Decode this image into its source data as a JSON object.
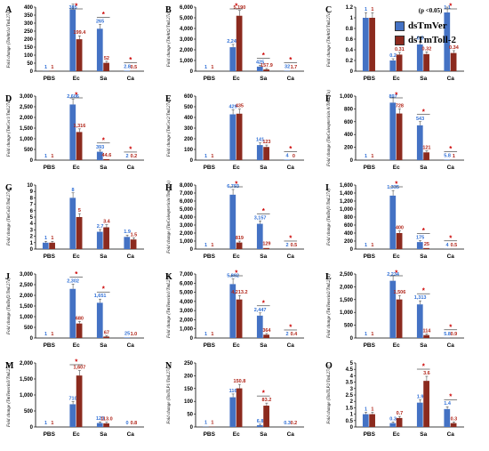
{
  "legend": [
    {
      "name": "dsTmVer",
      "color": "#4472C4"
    },
    {
      "name": "dsTmToll-2",
      "color": "#8B2A1E"
    }
  ],
  "colors": {
    "series1": "#4472C4",
    "series2": "#8B2A1E",
    "label1": "#2F6FD6",
    "label2": "#B02418",
    "star": "#CC0000"
  },
  "chart_data": [
    {
      "type": "bar",
      "panel": "A",
      "ylabel": "Fold change (TmAtt1a/TmL27a)",
      "ylim": [
        0,
        400
      ],
      "yticks": [
        0,
        50,
        100,
        150,
        200,
        250,
        300,
        350,
        400
      ],
      "categories": [
        "PBS",
        "Ec",
        "Sa",
        "Ca"
      ],
      "series": [
        {
          "name": "dsTmVer",
          "values": [
            1,
            385,
            265,
            2.8
          ]
        },
        {
          "name": "dsTmToll-2",
          "values": [
            1,
            199.4,
            52,
            0.5
          ]
        }
      ],
      "value_labels": [
        [
          "1",
          "385",
          "265",
          "2.8"
        ],
        [
          "1",
          "199.4",
          "52",
          "0.5"
        ]
      ],
      "significant": [
        false,
        true,
        true,
        true
      ]
    },
    {
      "type": "bar",
      "panel": "B",
      "ylabel": "Fold change (TmAtt2/TmL27a)",
      "ylim": [
        0,
        6000
      ],
      "yticks": [
        0,
        1000,
        2000,
        3000,
        4000,
        5000,
        6000
      ],
      "ytick_labels": [
        "0",
        "1,000",
        "2,000",
        "3,000",
        "4,000",
        "5,000",
        "6,000"
      ],
      "categories": [
        "PBS",
        "Ec",
        "Sa",
        "Ca"
      ],
      "series": [
        {
          "name": "dsTmVer",
          "values": [
            1,
            2243,
            425,
            32
          ]
        },
        {
          "name": "dsTmToll-2",
          "values": [
            1,
            5190,
            157.9,
            1.7
          ]
        }
      ],
      "value_labels": [
        [
          "1",
          "2,243",
          "425",
          "32"
        ],
        [
          "1",
          "5,190",
          "157.9",
          "1.7"
        ]
      ],
      "significant": [
        false,
        true,
        true,
        true
      ]
    },
    {
      "type": "bar",
      "panel": "C",
      "ylabel": "Fold change (TmAtt3/TmL27a)",
      "ylim": [
        0,
        1.2
      ],
      "yticks": [
        0,
        0.2,
        0.4,
        0.6,
        0.8,
        1,
        1.2
      ],
      "ytick_labels": [
        "0",
        "0.2",
        "0.4",
        "0.6",
        "0.8",
        "1",
        "1.2"
      ],
      "categories": [
        "PBS",
        "Ec",
        "Sa",
        "Ca"
      ],
      "series": [
        {
          "name": "dsTmVer",
          "values": [
            1,
            0.2,
            0.5,
            1.1
          ]
        },
        {
          "name": "dsTmToll-2",
          "values": [
            1,
            0.31,
            0.32,
            0.34
          ]
        }
      ],
      "value_labels": [
        [
          "1",
          "0.2",
          "0.5",
          "1.1"
        ],
        [
          "1",
          "0.31",
          "0.32",
          "0.34"
        ]
      ],
      "significant": [
        false,
        false,
        false,
        true
      ],
      "annotation": "(p <0.05)"
    },
    {
      "type": "bar",
      "panel": "D",
      "ylabel": "Fold change (TmCec1/TmL27a)",
      "ylim": [
        0,
        3000
      ],
      "yticks": [
        0,
        500,
        1000,
        1500,
        2000,
        2500,
        3000
      ],
      "ytick_labels": [
        "0",
        "500",
        "1,000",
        "1,500",
        "2,000",
        "2,500",
        "3,000"
      ],
      "categories": [
        "PBS",
        "Ec",
        "Sa",
        "Ca"
      ],
      "series": [
        {
          "name": "dsTmVer",
          "values": [
            1,
            2606,
            393,
            2
          ]
        },
        {
          "name": "dsTmToll-2",
          "values": [
            1,
            1316,
            44.6,
            0.2
          ]
        }
      ],
      "value_labels": [
        [
          "1",
          "2,606",
          "393",
          "2"
        ],
        [
          "1",
          "1,316",
          "44.6",
          "0.2"
        ]
      ],
      "significant": [
        false,
        true,
        true,
        true
      ]
    },
    {
      "type": "bar",
      "panel": "E",
      "ylabel": "Fold change (TmCec2/TmL27a)",
      "ylim": [
        0,
        600
      ],
      "yticks": [
        0,
        100,
        200,
        300,
        400,
        500,
        600
      ],
      "categories": [
        "PBS",
        "Ec",
        "Sa",
        "Ca"
      ],
      "series": [
        {
          "name": "dsTmVer",
          "values": [
            1,
            429,
            141,
            4
          ]
        },
        {
          "name": "dsTmToll-2",
          "values": [
            1,
            435,
            123,
            0
          ]
        }
      ],
      "value_labels": [
        [
          "1",
          "429",
          "141",
          "4"
        ],
        [
          "1",
          "435",
          "123",
          "0"
        ]
      ],
      "significant": [
        false,
        false,
        false,
        true
      ]
    },
    {
      "type": "bar",
      "panel": "F",
      "ylabel": "Fold change (TmColeoptericin A/TmL27a)",
      "ylim": [
        0,
        1000
      ],
      "yticks": [
        0,
        200,
        400,
        600,
        800,
        1000
      ],
      "ytick_labels": [
        "0",
        "200",
        "400",
        "600",
        "800",
        "1,000"
      ],
      "categories": [
        "PBS",
        "Ec",
        "Sa",
        "Ca"
      ],
      "series": [
        {
          "name": "dsTmVer",
          "values": [
            1,
            897,
            543,
            5.8
          ]
        },
        {
          "name": "dsTmToll-2",
          "values": [
            1,
            728,
            121,
            1
          ]
        }
      ],
      "value_labels": [
        [
          "1",
          "897",
          "543",
          "5.8"
        ],
        [
          "1",
          "728",
          "121",
          "1"
        ]
      ],
      "significant": [
        false,
        true,
        true,
        true
      ]
    },
    {
      "type": "bar",
      "panel": "G",
      "ylabel": "Fold change (TmCol2/TmL27a)",
      "ylim": [
        0,
        10
      ],
      "yticks": [
        0,
        1,
        2,
        3,
        4,
        5,
        6,
        7,
        8,
        9,
        10
      ],
      "categories": [
        "PBS",
        "Ec",
        "Sa",
        "Ca"
      ],
      "series": [
        {
          "name": "dsTmVer",
          "values": [
            1,
            8,
            2.7,
            1.9
          ]
        },
        {
          "name": "dsTmToll-2",
          "values": [
            1,
            5,
            3.4,
            1.5
          ]
        }
      ],
      "value_labels": [
        [
          "1",
          "8",
          "2.7",
          "1.9"
        ],
        [
          "1",
          "5",
          "3.4",
          "1.5"
        ]
      ],
      "significant": [
        false,
        false,
        false,
        false
      ]
    },
    {
      "type": "bar",
      "panel": "H",
      "ylabel": "Fold change (TmColeoptericin/TmL27a)",
      "ylim": [
        0,
        8000
      ],
      "yticks": [
        0,
        1000,
        2000,
        3000,
        4000,
        5000,
        6000,
        7000,
        8000
      ],
      "ytick_labels": [
        "0",
        "1,000",
        "2,000",
        "3,000",
        "4,000",
        "5,000",
        "6,000",
        "7,000",
        "8,000"
      ],
      "categories": [
        "PBS",
        "Ec",
        "Sa",
        "Ca"
      ],
      "series": [
        {
          "name": "dsTmVer",
          "values": [
            1,
            6793,
            3157,
            2
          ]
        },
        {
          "name": "dsTmToll-2",
          "values": [
            1,
            819,
            129,
            0.5
          ]
        }
      ],
      "value_labels": [
        [
          "1",
          "6,793",
          "3,157",
          "2"
        ],
        [
          "1",
          "819",
          "129",
          "0.5"
        ]
      ],
      "significant": [
        false,
        true,
        true,
        true
      ]
    },
    {
      "type": "bar",
      "panel": "I",
      "ylabel": "Fold change (TmDef1/TmL27a)",
      "ylim": [
        0,
        1600
      ],
      "yticks": [
        0,
        200,
        400,
        600,
        800,
        1000,
        1200,
        1400,
        1600
      ],
      "ytick_labels": [
        "0",
        "200",
        "400",
        "600",
        "800",
        "1,000",
        "1,200",
        "1,400",
        "1,600"
      ],
      "categories": [
        "PBS",
        "Ec",
        "Sa",
        "Ca"
      ],
      "series": [
        {
          "name": "dsTmVer",
          "values": [
            1,
            1335,
            175,
            4
          ]
        },
        {
          "name": "dsTmToll-2",
          "values": [
            1,
            400,
            25,
            0.5
          ]
        }
      ],
      "value_labels": [
        [
          "1",
          "1,335",
          "175",
          "4"
        ],
        [
          "1",
          "400",
          "25",
          "0.5"
        ]
      ],
      "significant": [
        false,
        true,
        true,
        true
      ]
    },
    {
      "type": "bar",
      "panel": "J",
      "ylabel": "Fold change (TmDef2/TmL27a)",
      "ylim": [
        0,
        3000
      ],
      "yticks": [
        0,
        500,
        1000,
        1500,
        2000,
        2500,
        3000
      ],
      "ytick_labels": [
        "0",
        "500",
        "1,000",
        "1,500",
        "2,000",
        "2,500",
        "3,000"
      ],
      "categories": [
        "PBS",
        "Ec",
        "Sa",
        "Ca"
      ],
      "series": [
        {
          "name": "dsTmVer",
          "values": [
            1,
            2302,
            1651,
            25
          ]
        },
        {
          "name": "dsTmToll-2",
          "values": [
            1,
            680,
            67,
            1.0
          ]
        }
      ],
      "value_labels": [
        [
          "1",
          "2,302",
          "1,651",
          "25"
        ],
        [
          "1",
          "680",
          "67",
          "1.0"
        ]
      ],
      "significant": [
        false,
        true,
        true,
        false
      ]
    },
    {
      "type": "bar",
      "panel": "K",
      "ylabel": "Fold change (TmTenecin1/TmL27a)",
      "ylim": [
        0,
        7000
      ],
      "yticks": [
        0,
        1000,
        2000,
        3000,
        4000,
        5000,
        6000,
        7000
      ],
      "ytick_labels": [
        "0",
        "1,000",
        "2,000",
        "3,000",
        "4,000",
        "5,000",
        "6,000",
        "7,000"
      ],
      "categories": [
        "PBS",
        "Ec",
        "Sa",
        "Ca"
      ],
      "series": [
        {
          "name": "dsTmVer",
          "values": [
            1,
            5892,
            2447,
            2
          ]
        },
        {
          "name": "dsTmToll-2",
          "values": [
            1,
            4213.2,
            364,
            0.4
          ]
        }
      ],
      "value_labels": [
        [
          "1",
          "5,892",
          "2,447",
          "2"
        ],
        [
          "1",
          "4,213.2",
          "364",
          "0.4"
        ]
      ],
      "significant": [
        false,
        true,
        true,
        true
      ]
    },
    {
      "type": "bar",
      "panel": "L",
      "ylabel": "Fold change (TmTenecin2/TmL27a)",
      "ylim": [
        0,
        2500
      ],
      "yticks": [
        0,
        500,
        1000,
        1500,
        2000,
        2500
      ],
      "ytick_labels": [
        "0",
        "500",
        "1,000",
        "1,500",
        "2,000",
        "2,500"
      ],
      "categories": [
        "PBS",
        "Ec",
        "Sa",
        "Ca"
      ],
      "series": [
        {
          "name": "dsTmVer",
          "values": [
            1,
            2234,
            1313,
            5.8
          ]
        },
        {
          "name": "dsTmToll-2",
          "values": [
            1,
            1506,
            114,
            0.9
          ]
        }
      ],
      "value_labels": [
        [
          "1",
          "2,234",
          "1,313",
          "5.8"
        ],
        [
          "1",
          "1,506",
          "114",
          "0.9"
        ]
      ],
      "significant": [
        false,
        true,
        true,
        true
      ]
    },
    {
      "type": "bar",
      "panel": "M",
      "ylabel": "Fold change (TmTenecin3/TmL27a)",
      "ylim": [
        0,
        2000
      ],
      "yticks": [
        0,
        500,
        1000,
        1500,
        2000
      ],
      "ytick_labels": [
        "0",
        "500",
        "1,000",
        "1,500",
        "2,000"
      ],
      "categories": [
        "PBS",
        "Ec",
        "Sa",
        "Ca"
      ],
      "series": [
        {
          "name": "dsTmVer",
          "values": [
            1,
            710,
            123,
            0
          ]
        },
        {
          "name": "dsTmToll-2",
          "values": [
            1,
            1607,
            113,
            0.8
          ]
        }
      ],
      "value_labels": [
        [
          "1",
          "710",
          "123",
          "0"
        ],
        [
          "1",
          "1,607",
          "113.0",
          "0.8"
        ]
      ],
      "significant": [
        false,
        true,
        false,
        false
      ]
    },
    {
      "type": "bar",
      "panel": "N",
      "ylabel": "Fold change (TmTLP1/TmL27a)",
      "ylim": [
        0,
        250
      ],
      "yticks": [
        0,
        50,
        100,
        150,
        200,
        250
      ],
      "categories": [
        "PBS",
        "Ec",
        "Sa",
        "Ca"
      ],
      "series": [
        {
          "name": "dsTmVer",
          "values": [
            1,
            116,
            6.8,
            0.3
          ]
        },
        {
          "name": "dsTmToll-2",
          "values": [
            1,
            150.8,
            83.2,
            0.2
          ]
        }
      ],
      "value_labels": [
        [
          "1",
          "116",
          "6.8",
          "0.3"
        ],
        [
          "1",
          "150.8",
          "83.2",
          "0.2"
        ]
      ],
      "significant": [
        false,
        false,
        true,
        false
      ]
    },
    {
      "type": "bar",
      "panel": "O",
      "ylabel": "Fold change (TmTLP2/TmL27a)",
      "ylim": [
        0,
        5
      ],
      "yticks": [
        0,
        0.5,
        1,
        1.5,
        2,
        2.5,
        3,
        3.5,
        4,
        4.5,
        5
      ],
      "ytick_labels": [
        "0",
        "0.5",
        "1",
        "1.5",
        "2",
        "2.5",
        "3",
        "3.5",
        "4",
        "4.5",
        "5"
      ],
      "categories": [
        "PBS",
        "Ec",
        "Sa",
        "Ca"
      ],
      "series": [
        {
          "name": "dsTmVer",
          "values": [
            1,
            0.3,
            1.9,
            1.4
          ]
        },
        {
          "name": "dsTmToll-2",
          "values": [
            1,
            0.7,
            3.6,
            0.3
          ]
        }
      ],
      "value_labels": [
        [
          "1",
          "0.3",
          "1.9",
          "1.4"
        ],
        [
          "1",
          "0.7",
          "3.6",
          "0.3"
        ]
      ],
      "significant": [
        false,
        false,
        true,
        true
      ]
    }
  ]
}
